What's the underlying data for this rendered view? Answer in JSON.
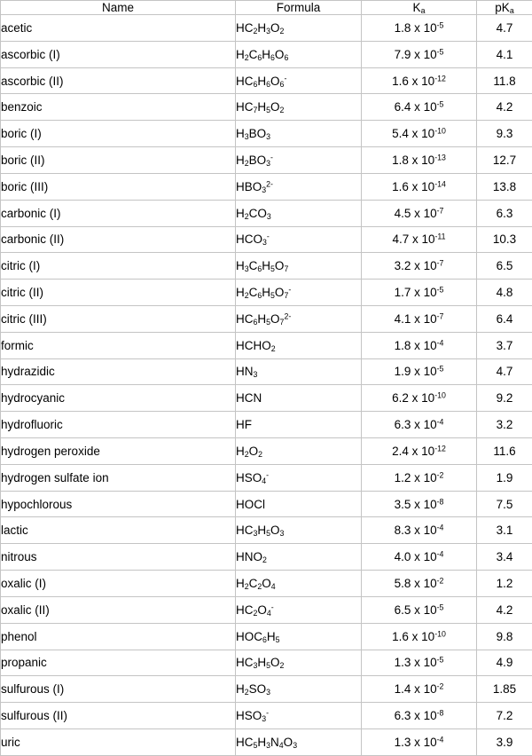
{
  "page": {
    "background_color": "#ffffff",
    "border_color": "#c4c4c4",
    "text_color": "#000000"
  },
  "table": {
    "headers": [
      {
        "label": "Name"
      },
      {
        "label": "Formula"
      },
      {
        "label": "K_a"
      },
      {
        "label": "pK_a"
      }
    ]
  },
  "chart_data": {
    "type": "table",
    "columns": [
      "Name",
      "Formula",
      "Ka",
      "pKa"
    ],
    "rows": [
      {
        "name": "acetic",
        "formula": "HC_2H_3O_2",
        "ka": "1.8 x 10^-5",
        "pka": "4.7"
      },
      {
        "name": "ascorbic (I)",
        "formula": "H_2C_6H_6O_6",
        "ka": "7.9 x 10^-5",
        "pka": "4.1"
      },
      {
        "name": "ascorbic (II)",
        "formula": "HC_6H_6O_6^-",
        "ka": "1.6 x 10^-12",
        "pka": "11.8"
      },
      {
        "name": "benzoic",
        "formula": "HC_7H_5O_2",
        "ka": "6.4 x 10^-5",
        "pka": "4.2"
      },
      {
        "name": "boric (I)",
        "formula": "H_3BO_3",
        "ka": "5.4 x 10^-10",
        "pka": "9.3"
      },
      {
        "name": "boric (II)",
        "formula": "H_2BO_3^-",
        "ka": "1.8 x 10^-13",
        "pka": "12.7"
      },
      {
        "name": "boric (III)",
        "formula": "HBO_3^2-",
        "ka": "1.6 x 10^-14",
        "pka": "13.8"
      },
      {
        "name": "carbonic (I)",
        "formula": "H_2CO_3",
        "ka": "4.5 x 10^-7",
        "pka": "6.3"
      },
      {
        "name": "carbonic (II)",
        "formula": "HCO_3^-",
        "ka": "4.7 x 10^-11",
        "pka": "10.3"
      },
      {
        "name": "citric (I)",
        "formula": "H_3C_6H_5O_7",
        "ka": "3.2 x 10^-7",
        "pka": "6.5"
      },
      {
        "name": "citric (II)",
        "formula": "H_2C_6H_5O_7^-",
        "ka": "1.7 x 10^-5",
        "pka": "4.8"
      },
      {
        "name": "citric (III)",
        "formula": "HC_6H_5O_7^2-",
        "ka": "4.1 x 10^-7",
        "pka": "6.4"
      },
      {
        "name": "formic",
        "formula": "HCHO_2",
        "ka": "1.8 x 10^-4",
        "pka": "3.7"
      },
      {
        "name": "hydrazidic",
        "formula": "HN_3",
        "ka": "1.9 x 10^-5",
        "pka": "4.7"
      },
      {
        "name": "hydrocyanic",
        "formula": "HCN",
        "ka": "6.2 x 10^-10",
        "pka": "9.2"
      },
      {
        "name": "hydrofluoric",
        "formula": "HF",
        "ka": "6.3 x 10^-4",
        "pka": "3.2"
      },
      {
        "name": "hydrogen peroxide",
        "formula": "H_2O_2",
        "ka": "2.4 x 10^-12",
        "pka": "11.6"
      },
      {
        "name": "hydrogen sulfate ion",
        "formula": "HSO_4^-",
        "ka": "1.2 x 10^-2",
        "pka": "1.9"
      },
      {
        "name": "hypochlorous",
        "formula": "HOCl",
        "ka": "3.5 x 10^-8",
        "pka": "7.5"
      },
      {
        "name": "lactic",
        "formula": "HC_3H_5O_3",
        "ka": "8.3 x 10^-4",
        "pka": "3.1"
      },
      {
        "name": "nitrous",
        "formula": "HNO_2",
        "ka": "4.0 x 10^-4",
        "pka": "3.4"
      },
      {
        "name": "oxalic (I)",
        "formula": "H_2C_2O_4",
        "ka": "5.8 x 10^-2",
        "pka": "1.2"
      },
      {
        "name": "oxalic (II)",
        "formula": "HC_2O_4^-",
        "ka": "6.5 x 10^-5",
        "pka": "4.2"
      },
      {
        "name": "phenol",
        "formula": "HOC_6H_5",
        "ka": "1.6 x 10^-10",
        "pka": "9.8"
      },
      {
        "name": "propanic",
        "formula": "HC_3H_5O_2",
        "ka": "1.3 x 10^-5",
        "pka": "4.9"
      },
      {
        "name": "sulfurous (I)",
        "formula": "H_2SO_3",
        "ka": "1.4 x 10^-2",
        "pka": "1.85"
      },
      {
        "name": "sulfurous (II)",
        "formula": "HSO_3^-",
        "ka": "6.3 x 10^-8",
        "pka": "7.2"
      },
      {
        "name": "uric",
        "formula": "HC_5H_3N_4O_3",
        "ka": "1.3 x 10^-4",
        "pka": "3.9"
      }
    ]
  }
}
